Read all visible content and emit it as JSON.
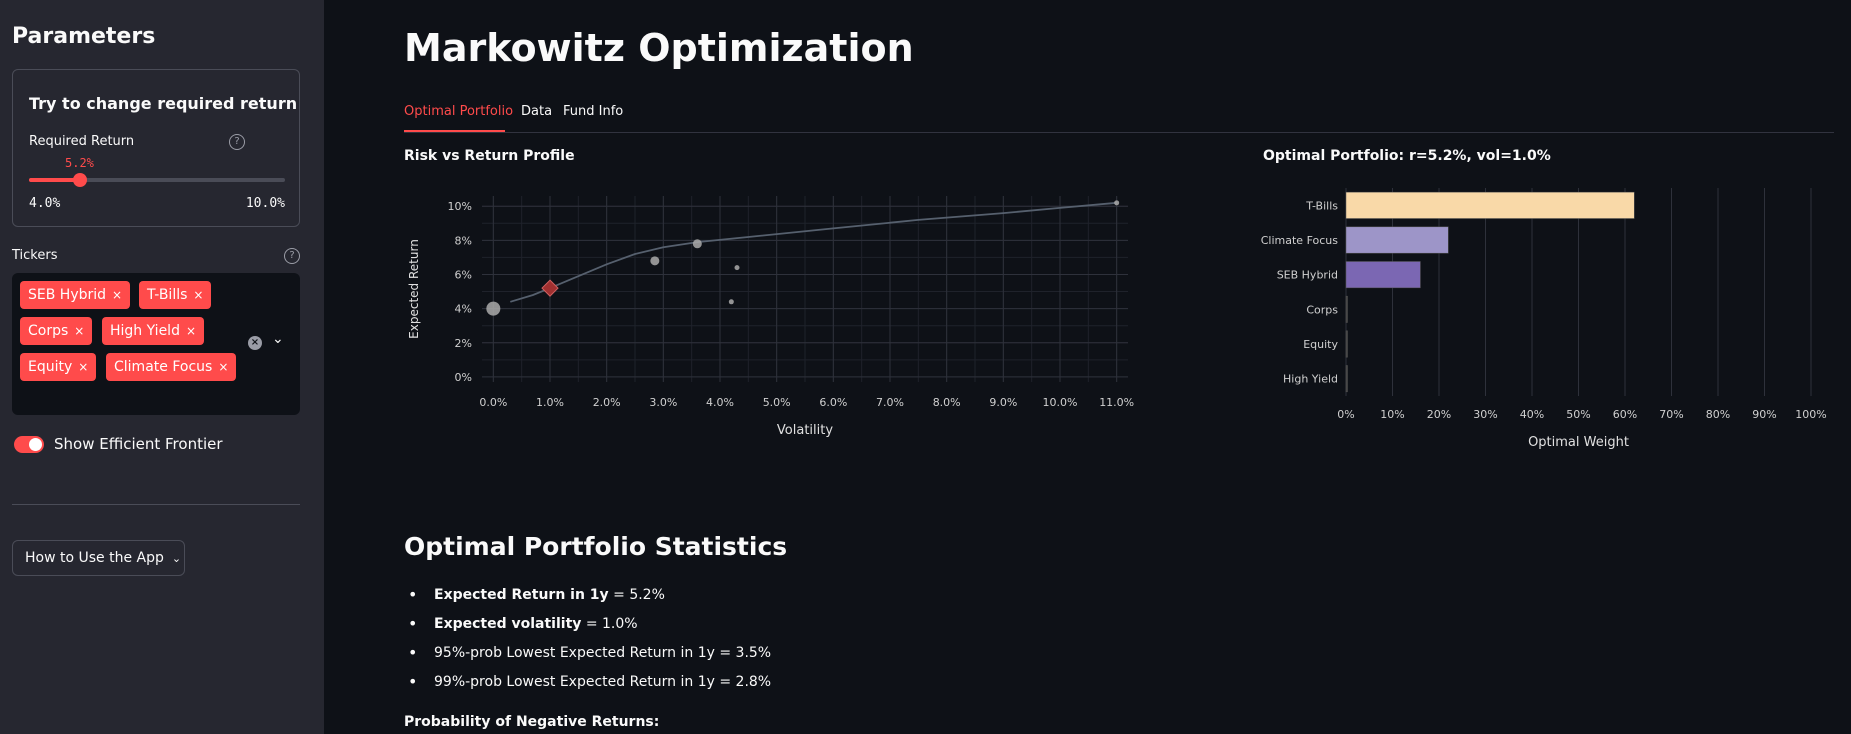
{
  "sidebar": {
    "title": "Parameters",
    "card_title": "Try to change required return",
    "slider": {
      "label": "Required Return",
      "value_label": "5.2%",
      "min_label": "4.0%",
      "max_label": "10.0%",
      "value": 5.2,
      "min": 4.0,
      "max": 10.0
    },
    "help_icon": "?",
    "tickers_label": "Tickers",
    "tickers": [
      "SEB Hybrid",
      "T-Bills",
      "Corps",
      "High Yield",
      "Equity",
      "Climate Focus"
    ],
    "tag_remove": "×",
    "clear_icon": "×",
    "dropdown_icon": "⌄",
    "toggle_label": "Show Efficient Frontier",
    "toggle_on": true,
    "expander_label": "How to Use the App",
    "expander_chevron": "⌄"
  },
  "main": {
    "title": "Markowitz Optimization",
    "tabs": [
      {
        "label": "Optimal Portfolio",
        "active": true
      },
      {
        "label": "Data"
      },
      {
        "label": "Fund Info"
      }
    ],
    "stats_title": "Optimal Portfolio Statistics",
    "stats": [
      {
        "bold": "Expected Return in 1y",
        "rest": " = 5.2%"
      },
      {
        "bold": "Expected volatility",
        "rest": " = 1.0%"
      },
      {
        "bold": "",
        "rest": "95%-prob Lowest Expected Return in 1y = 3.5%"
      },
      {
        "bold": "",
        "rest": "99%-prob Lowest Expected Return in 1y = 2.8%"
      }
    ],
    "neg_title": "Probability of Negative Returns:"
  },
  "chart_data": [
    {
      "type": "scatter",
      "title": "Risk vs Return Profile",
      "xlabel": "Volatility",
      "ylabel": "Expected Return",
      "xlim": [
        -0.2,
        11.2
      ],
      "ylim": [
        -0.3,
        10.6
      ],
      "x_ticks": [
        0,
        1,
        2,
        3,
        4,
        5,
        6,
        7,
        8,
        9,
        10,
        11
      ],
      "x_tick_labels": [
        "0.0%",
        "1.0%",
        "2.0%",
        "3.0%",
        "4.0%",
        "5.0%",
        "6.0%",
        "7.0%",
        "8.0%",
        "9.0%",
        "10.0%",
        "11.0%"
      ],
      "y_ticks": [
        0,
        2,
        4,
        6,
        8,
        10
      ],
      "y_tick_labels": [
        "0%",
        "2%",
        "4%",
        "6%",
        "8%",
        "10%"
      ],
      "grid": true,
      "frontier": [
        [
          0.3,
          4.4
        ],
        [
          0.7,
          4.8
        ],
        [
          1.0,
          5.2
        ],
        [
          1.5,
          5.9
        ],
        [
          2.0,
          6.6
        ],
        [
          2.5,
          7.2
        ],
        [
          3.0,
          7.6
        ],
        [
          3.6,
          7.9
        ],
        [
          4.5,
          8.2
        ],
        [
          6.0,
          8.7
        ],
        [
          7.5,
          9.2
        ],
        [
          9.0,
          9.6
        ],
        [
          10.0,
          9.9
        ],
        [
          11.0,
          10.2
        ]
      ],
      "assets": [
        {
          "x": 0.0,
          "y": 4.0,
          "size": "large"
        },
        {
          "x": 2.85,
          "y": 6.8,
          "size": "medium"
        },
        {
          "x": 3.6,
          "y": 7.8,
          "size": "medium"
        },
        {
          "x": 4.3,
          "y": 6.4,
          "size": "small"
        },
        {
          "x": 4.2,
          "y": 4.4,
          "size": "small"
        },
        {
          "x": 11.0,
          "y": 10.2,
          "size": "small"
        }
      ],
      "optimal": {
        "x": 1.0,
        "y": 5.2,
        "color": "#a03030"
      }
    },
    {
      "type": "bar",
      "orientation": "horizontal",
      "title": "Optimal Portfolio: r=5.2%, vol=1.0%",
      "xlabel": "Optimal Weight",
      "categories": [
        "T-Bills",
        "Climate Focus",
        "SEB Hybrid",
        "Corps",
        "Equity",
        "High Yield"
      ],
      "values": [
        62,
        22,
        16,
        0,
        0,
        0
      ],
      "colors": [
        "#f9d9a8",
        "#9d95c8",
        "#7b67b3",
        "#444444",
        "#444444",
        "#444444"
      ],
      "xlim": [
        0,
        100
      ],
      "x_ticks": [
        0,
        10,
        20,
        30,
        40,
        50,
        60,
        70,
        80,
        90,
        100
      ],
      "x_tick_labels": [
        "0%",
        "10%",
        "20%",
        "30%",
        "40%",
        "50%",
        "60%",
        "70%",
        "80%",
        "90%",
        "100%"
      ],
      "grid": true
    }
  ]
}
